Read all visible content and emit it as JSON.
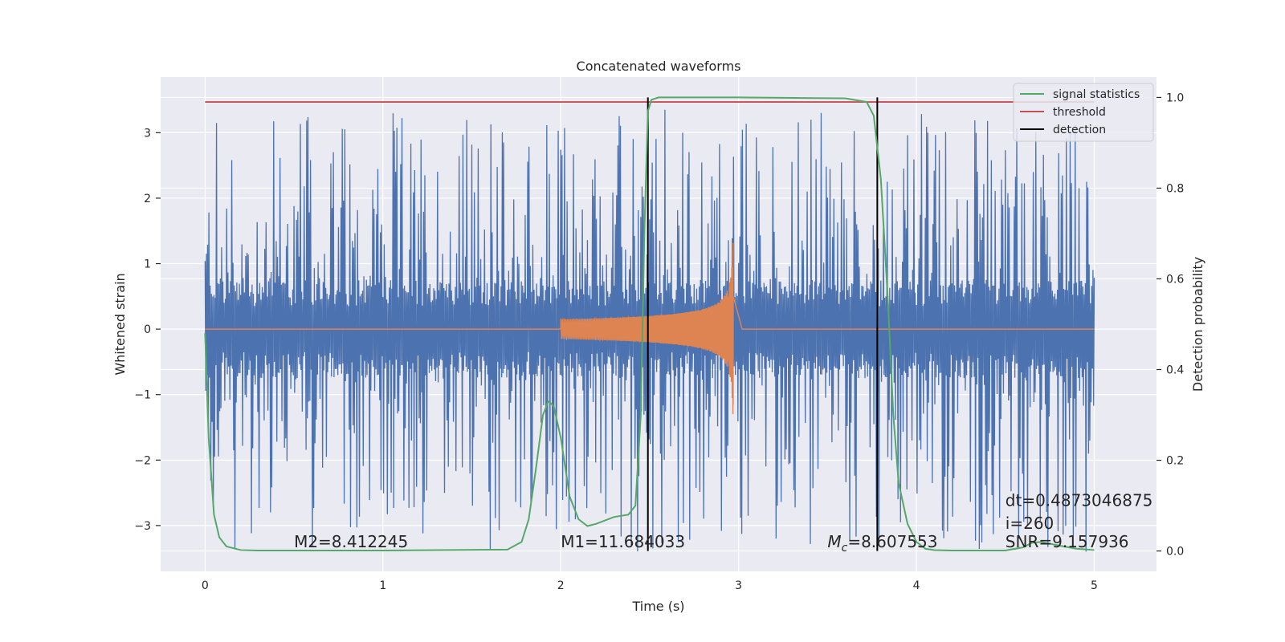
{
  "chart_data": {
    "type": "line",
    "title": "Concatenated waveforms",
    "xlabel": "Time (s)",
    "ylabel": "Whitened strain",
    "y2label": "Detection probability",
    "xlim": [
      -0.25,
      5.35
    ],
    "ylim": [
      -3.7,
      3.85
    ],
    "y2lim": [
      -0.045,
      1.045
    ],
    "xticks": [
      0,
      1,
      2,
      3,
      4,
      5
    ],
    "yticks": [
      -3,
      -2,
      -1,
      0,
      1,
      2,
      3
    ],
    "yticklabels": [
      "−3",
      "−2",
      "−1",
      "0",
      "1",
      "2",
      "3"
    ],
    "y2ticks": [
      0.0,
      0.2,
      0.4,
      0.6,
      0.8,
      1.0
    ],
    "y2ticklabels": [
      "0.0",
      "0.2",
      "0.4",
      "0.6",
      "0.8",
      "1.0"
    ],
    "grid": true,
    "legend_position": "top-right",
    "colors": {
      "strain": "#4c72b0",
      "template": "#dd8452",
      "signal_statistics": "#55a868",
      "threshold": "#c44e52",
      "detection": "#000000",
      "background": "#eaeaf2",
      "grid": "#ffffff"
    },
    "series": [
      {
        "name": "signal statistics",
        "axis": "right",
        "x": [
          0.0,
          0.02,
          0.05,
          0.08,
          0.12,
          0.2,
          0.3,
          1.0,
          1.7,
          1.78,
          1.82,
          1.86,
          1.9,
          1.93,
          1.96,
          2.0,
          2.05,
          2.1,
          2.15,
          2.2,
          2.3,
          2.38,
          2.42,
          2.45,
          2.47,
          2.49,
          2.51,
          2.55,
          3.0,
          3.6,
          3.72,
          3.76,
          3.8,
          3.84,
          3.87,
          3.9,
          3.95,
          4.0,
          4.05,
          4.1,
          4.2,
          4.5,
          4.6,
          4.65,
          4.7,
          4.8,
          4.9,
          5.0
        ],
        "values": [
          0.48,
          0.25,
          0.08,
          0.03,
          0.01,
          0.002,
          0.001,
          0.001,
          0.003,
          0.02,
          0.07,
          0.18,
          0.3,
          0.33,
          0.32,
          0.25,
          0.12,
          0.07,
          0.055,
          0.06,
          0.075,
          0.08,
          0.1,
          0.3,
          0.7,
          0.97,
          0.995,
          1.0,
          1.0,
          0.998,
          0.99,
          0.96,
          0.82,
          0.55,
          0.3,
          0.15,
          0.06,
          0.02,
          0.005,
          0.002,
          0.001,
          0.001,
          0.008,
          0.018,
          0.02,
          0.012,
          0.005,
          0.002
        ]
      },
      {
        "name": "threshold",
        "axis": "right",
        "x": [
          0,
          5
        ],
        "values": [
          0.99,
          0.99
        ]
      },
      {
        "name": "detection",
        "axis": "right",
        "x_positions": [
          2.49,
          3.78
        ],
        "values": [
          0.0,
          1.0
        ]
      },
      {
        "name": "",
        "label_role": "whitened noisy strain",
        "axis": "left",
        "x_range": [
          0,
          5
        ],
        "amplitude_typical": 1.2,
        "amplitude_max": 3.4
      },
      {
        "name": "",
        "label_role": "injected waveform",
        "axis": "left",
        "x_range": [
          2.0,
          3.02
        ],
        "amplitude_start": 0.15,
        "amplitude_peak": 1.0,
        "peak_x": 2.97
      }
    ],
    "legend": [
      {
        "label": "signal statistics",
        "color": "#55a868"
      },
      {
        "label": "threshold",
        "color": "#c44e52"
      },
      {
        "label": "detection",
        "color": "#000000"
      }
    ],
    "annotations": [
      {
        "text": "M2=8.412245",
        "x": 0.5,
        "y": -3.33
      },
      {
        "text": "M1=11.684033",
        "x": 2.0,
        "y": -3.33
      },
      {
        "text_symbol": "M",
        "text_sub": "c",
        "text_rest": "=8.607553",
        "x": 3.5,
        "y": -3.33
      },
      {
        "text": "SNR=9.157936",
        "x": 4.5,
        "y": -3.33
      },
      {
        "text": "dt=0.4873046875",
        "x": 4.5,
        "y": -2.7
      },
      {
        "text": " i=260",
        "x": 4.5,
        "y": -3.05
      }
    ]
  }
}
